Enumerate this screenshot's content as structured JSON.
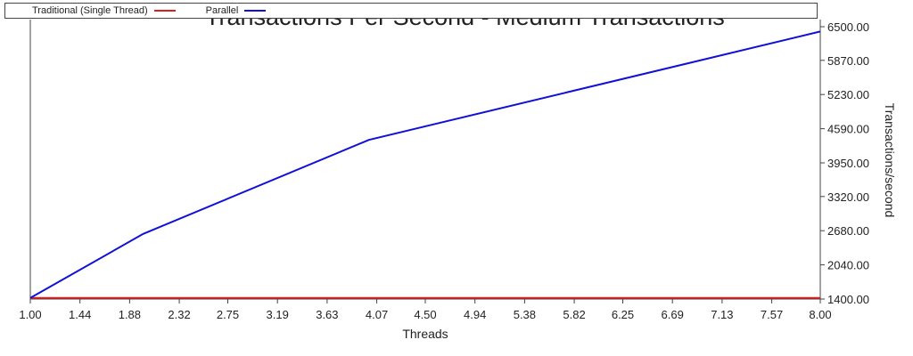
{
  "chart_data": {
    "type": "line",
    "title": "Transactions Per Second - Medium Transactions",
    "xlabel": "Threads",
    "ylabel": "Transactions/second",
    "x_ticks": [
      "1.00",
      "1.44",
      "1.88",
      "2.32",
      "2.75",
      "3.19",
      "3.63",
      "4.07",
      "4.50",
      "4.94",
      "5.38",
      "5.82",
      "6.25",
      "6.69",
      "7.13",
      "7.57",
      "8.00"
    ],
    "y_ticks": [
      "1400.00",
      "2040.00",
      "2680.00",
      "3320.00",
      "3950.00",
      "4590.00",
      "5230.00",
      "5870.00",
      "6500.00"
    ],
    "xlim": [
      1,
      8
    ],
    "ylim": [
      1400,
      6500
    ],
    "y_axis_side": "right",
    "legend_position": "top",
    "grid": false,
    "series": [
      {
        "name": "Traditional (Single Thread)",
        "color": "#d42020",
        "x": [
          1,
          2,
          4,
          8
        ],
        "y": [
          1420,
          1420,
          1420,
          1420
        ]
      },
      {
        "name": "Parallel",
        "color": "#1010d8",
        "x": [
          1,
          2,
          4,
          8
        ],
        "y": [
          1420,
          2620,
          4380,
          6410
        ]
      }
    ]
  }
}
